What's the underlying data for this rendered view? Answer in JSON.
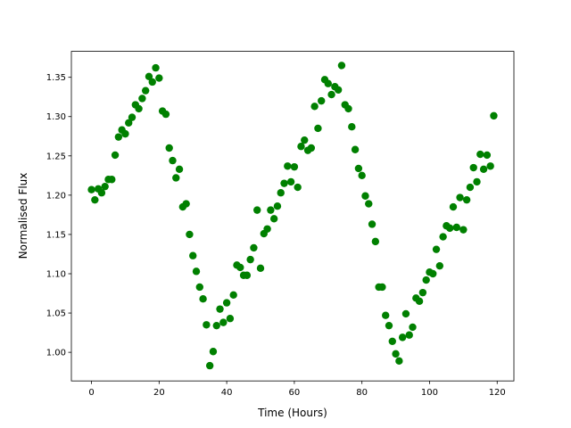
{
  "chart_data": {
    "type": "scatter",
    "xlabel": "Time (Hours)",
    "ylabel": "Normalised Flux",
    "color": "#008000",
    "x": [
      0,
      1,
      2,
      3,
      4,
      5,
      6,
      7,
      8,
      9,
      10,
      11,
      12,
      13,
      14,
      15,
      16,
      17,
      18,
      19,
      20,
      21,
      22,
      23,
      24,
      25,
      26,
      27,
      28,
      29,
      30,
      31,
      32,
      33,
      34,
      35,
      36,
      37,
      38,
      39,
      40,
      41,
      42,
      43,
      44,
      45,
      46,
      47,
      48,
      49,
      50,
      51,
      52,
      53,
      54,
      55,
      56,
      57,
      58,
      59,
      60,
      61,
      62,
      63,
      64,
      65,
      66,
      67,
      68,
      69,
      70,
      71,
      72,
      73,
      74,
      75,
      76,
      77,
      78,
      79,
      80,
      81,
      82,
      83,
      84,
      85,
      86,
      87,
      88,
      89,
      90,
      91,
      92,
      93,
      94,
      95,
      96,
      97,
      98,
      99,
      100,
      101,
      102,
      103,
      104,
      105,
      106,
      107,
      108,
      109,
      110,
      111,
      112,
      113,
      114,
      115,
      116,
      117,
      118,
      119
    ],
    "values": [
      1.207,
      1.194,
      1.208,
      1.203,
      1.211,
      1.22,
      1.22,
      1.251,
      1.274,
      1.283,
      1.278,
      1.292,
      1.299,
      1.315,
      1.31,
      1.323,
      1.333,
      1.351,
      1.344,
      1.362,
      1.349,
      1.307,
      1.303,
      1.26,
      1.244,
      1.222,
      1.233,
      1.185,
      1.189,
      1.15,
      1.123,
      1.103,
      1.083,
      1.068,
      1.035,
      0.983,
      1.001,
      1.034,
      1.055,
      1.038,
      1.063,
      1.043,
      1.073,
      1.111,
      1.108,
      1.098,
      1.098,
      1.118,
      1.133,
      1.181,
      1.107,
      1.151,
      1.157,
      1.181,
      1.17,
      1.186,
      1.203,
      1.215,
      1.237,
      1.217,
      1.236,
      1.21,
      1.262,
      1.27,
      1.257,
      1.26,
      1.313,
      1.285,
      1.32,
      1.347,
      1.342,
      1.328,
      1.338,
      1.334,
      1.365,
      1.315,
      1.31,
      1.287,
      1.258,
      1.234,
      1.225,
      1.199,
      1.189,
      1.163,
      1.141,
      1.083,
      1.083,
      1.047,
      1.034,
      1.014,
      0.998,
      0.989,
      1.019,
      1.049,
      1.022,
      1.032,
      1.069,
      1.065,
      1.076,
      1.092,
      1.102,
      1.1,
      1.131,
      1.11,
      1.147,
      1.161,
      1.158,
      1.185,
      1.159,
      1.197,
      1.156,
      1.194,
      1.21,
      1.235,
      1.217,
      1.252,
      1.233,
      1.251,
      1.237,
      1.301
    ],
    "xlim": [
      -5.95,
      124.95
    ],
    "ylim": [
      0.9636,
      1.383
    ],
    "xticks": [
      0,
      20,
      40,
      60,
      80,
      100,
      120
    ],
    "yticks": [
      {
        "value": 1.0,
        "label": "1.00"
      },
      {
        "value": 1.05,
        "label": "1.05"
      },
      {
        "value": 1.1,
        "label": "1.10"
      },
      {
        "value": 1.15,
        "label": "1.15"
      },
      {
        "value": 1.2,
        "label": "1.20"
      },
      {
        "value": 1.25,
        "label": "1.25"
      },
      {
        "value": 1.3,
        "label": "1.30"
      },
      {
        "value": 1.35,
        "label": "1.35"
      }
    ]
  }
}
